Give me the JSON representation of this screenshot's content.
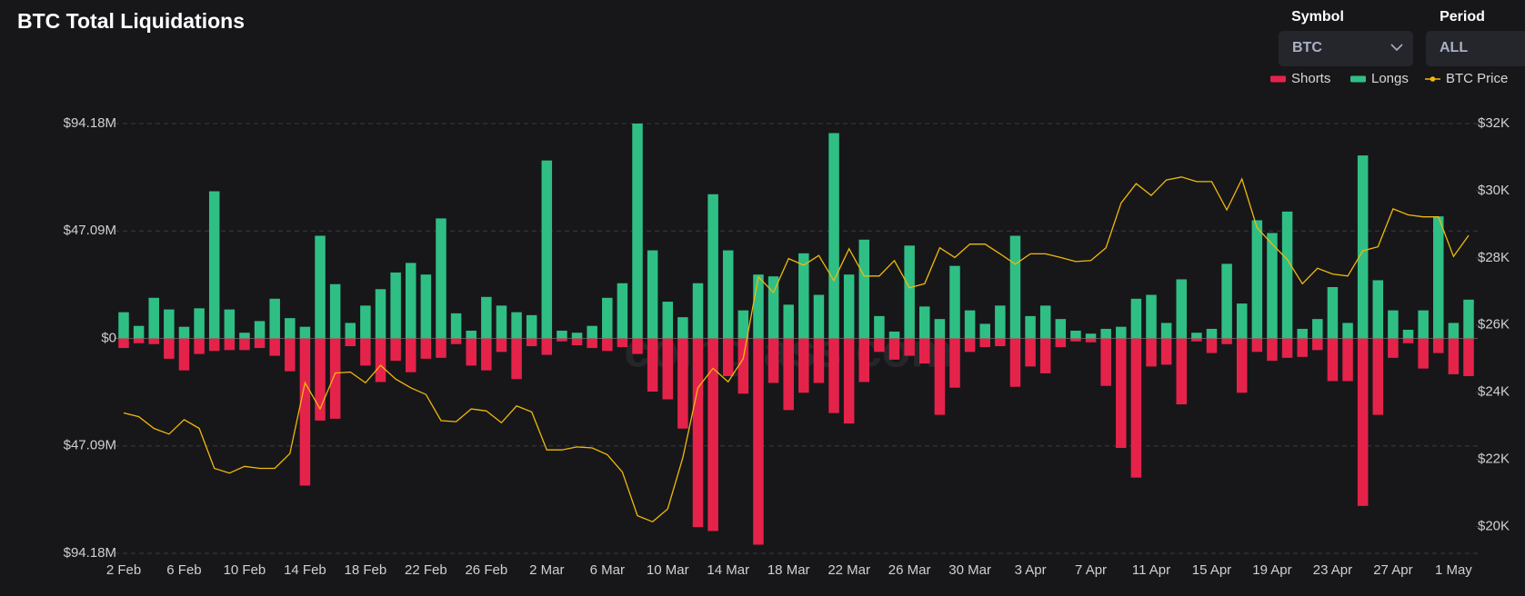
{
  "controls": {
    "symbol_label": "Symbol",
    "symbol_value": "BTC",
    "period_label": "Period",
    "period_value": "ALL"
  },
  "chart_data": {
    "type": "bar",
    "title": "BTC Total Liquidations",
    "watermark": "coinglass.com",
    "categories": [
      "2 Feb",
      null,
      null,
      null,
      "6 Feb",
      null,
      null,
      null,
      "10 Feb",
      null,
      null,
      null,
      "14 Feb",
      null,
      null,
      null,
      "18 Feb",
      null,
      null,
      null,
      "22 Feb",
      null,
      null,
      null,
      "26 Feb",
      null,
      null,
      null,
      "2 Mar",
      null,
      null,
      null,
      "6 Mar",
      null,
      null,
      null,
      "10 Mar",
      null,
      null,
      null,
      "14 Mar",
      null,
      null,
      null,
      "18 Mar",
      null,
      null,
      null,
      "22 Mar",
      null,
      null,
      null,
      "26 Mar",
      null,
      null,
      null,
      "30 Mar",
      null,
      null,
      null,
      "3 Apr",
      null,
      null,
      null,
      "7 Apr",
      null,
      null,
      null,
      "11 Apr",
      null,
      null,
      null,
      "15 Apr",
      null,
      null,
      null,
      "19 Apr",
      null,
      null,
      null,
      "23 Apr",
      null,
      null,
      null,
      "27 Apr",
      null,
      null,
      null,
      "1 May",
      null
    ],
    "series": [
      {
        "name": "Shorts",
        "type": "bar",
        "color": "#e5234a",
        "values": [
          -4.2,
          -2.1,
          -2.5,
          -8.9,
          -14,
          -6.8,
          -5.5,
          -5.1,
          -5.1,
          -4.2,
          -7.6,
          -14.4,
          -64.5,
          -36,
          -35.2,
          -3.4,
          -11.9,
          -19.1,
          -9.8,
          -14.8,
          -8.9,
          -8.5,
          -2.5,
          -11.9,
          -14,
          -5.9,
          -17.8,
          -3.4,
          -7.2,
          -1.3,
          -3,
          -4.2,
          -5.5,
          -3.8,
          -6.8,
          -23.3,
          -26.7,
          -39.5,
          -82.7,
          -84.4,
          -16.5,
          -24.2,
          -90.4,
          -19.5,
          -31.4,
          -23.8,
          -19.5,
          -32.7,
          -37.3,
          -19.1,
          -5.9,
          -9.3,
          -7.6,
          -11,
          -33.5,
          -21.6,
          -5.9,
          -3.8,
          -3.4,
          -21.2,
          -12.3,
          -15.3,
          -3.8,
          -1.3,
          -1.7,
          -20.8,
          -48,
          -61,
          -12.3,
          -11.5,
          -28.9,
          -1.3,
          -6.4,
          -2.5,
          -23.8,
          -5.9,
          -9.8,
          -8.5,
          -8.1,
          -5.1,
          -18.7,
          -18.7,
          -73.4,
          -33.5,
          -8.5,
          -2.1,
          -13.2,
          -6.4,
          -15.7,
          -16.5
        ]
      },
      {
        "name": "Longs",
        "type": "bar",
        "color": "#2fbf85",
        "values": [
          11.5,
          5.5,
          17.8,
          12.7,
          5.1,
          13.2,
          64.5,
          12.7,
          2.5,
          7.6,
          17.4,
          8.9,
          5.1,
          45,
          23.8,
          6.8,
          14.4,
          21.6,
          28.9,
          33.1,
          28,
          52.6,
          11,
          3.4,
          18.2,
          14.4,
          11.5,
          10.2,
          78,
          3.4,
          2.5,
          5.5,
          17.8,
          24.2,
          94.18,
          38.6,
          16.1,
          9.3,
          24.2,
          63.2,
          38.6,
          12.3,
          28,
          27.2,
          14.8,
          37.3,
          19.1,
          90,
          28,
          43.3,
          9.8,
          3,
          40.7,
          14,
          8.5,
          31.8,
          12.3,
          6.4,
          14.4,
          45,
          9.8,
          14.4,
          8.5,
          3.4,
          2.1,
          4.2,
          5.1,
          17.4,
          19.1,
          6.8,
          25.9,
          2.5,
          4.2,
          32.7,
          15.3,
          51.8,
          46.2,
          55.6,
          4.2,
          8.5,
          22.5,
          6.8,
          80.2,
          25.5,
          12.3,
          3.8,
          12.3,
          53.5,
          6.8,
          17
        ]
      },
      {
        "name": "BTC Price",
        "type": "line",
        "axis": "y2",
        "color": "#f0b90b",
        "values": [
          23380,
          23270,
          22920,
          22750,
          23180,
          22920,
          21730,
          21590,
          21790,
          21730,
          21730,
          22170,
          24280,
          23500,
          24570,
          24600,
          24280,
          24800,
          24390,
          24130,
          23930,
          23150,
          23120,
          23500,
          23440,
          23090,
          23590,
          23410,
          22280,
          22280,
          22370,
          22340,
          22140,
          21620,
          20320,
          20140,
          20520,
          22050,
          24130,
          24710,
          24310,
          25000,
          27430,
          26970,
          27980,
          27780,
          28070,
          27320,
          28270,
          27460,
          27460,
          27920,
          27110,
          27230,
          28300,
          28010,
          28410,
          28410,
          28120,
          27810,
          28120,
          28120,
          28010,
          27890,
          27920,
          28300,
          29630,
          30210,
          29860,
          30320,
          30410,
          30270,
          30270,
          29430,
          30350,
          28900,
          28410,
          27950,
          27230,
          27690,
          27520,
          27460,
          28210,
          28330,
          29460,
          29280,
          29220,
          29220,
          28040,
          28670
        ]
      }
    ],
    "ylim": [
      -94.18,
      94.18
    ],
    "yticks": [
      {
        "value": -94.18,
        "label": "$94.18M"
      },
      {
        "value": -47.09,
        "label": "$47.09M"
      },
      {
        "value": 0,
        "label": "$0"
      },
      {
        "value": 47.09,
        "label": "$47.09M"
      },
      {
        "value": 94.18,
        "label": "$94.18M"
      }
    ],
    "y2lim": [
      19200,
      32000
    ],
    "y2ticks": [
      {
        "value": 20000,
        "label": "$20K"
      },
      {
        "value": 22000,
        "label": "$22K"
      },
      {
        "value": 24000,
        "label": "$24K"
      },
      {
        "value": 26000,
        "label": "$26K"
      },
      {
        "value": 28000,
        "label": "$28K"
      },
      {
        "value": 30000,
        "label": "$30K"
      },
      {
        "value": 32000,
        "label": "$32K"
      }
    ],
    "grid": true,
    "legend": "top-right"
  }
}
